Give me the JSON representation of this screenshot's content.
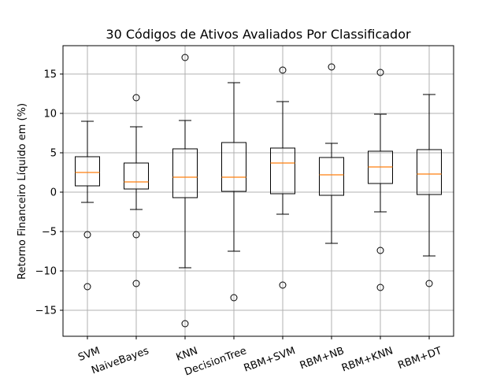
{
  "chart_data": {
    "type": "box",
    "title": "30 Códigos de Ativos Avaliados Por Classificador",
    "xlabel": "",
    "ylabel": "Retorno Financeiro Líquido em (%)",
    "ylim": [
      -18.3,
      18.6
    ],
    "yticks": [
      -15,
      -10,
      -5,
      0,
      5,
      10,
      15
    ],
    "grid": true,
    "median_color": "#ff7f0e",
    "categories": [
      "SVM",
      "NaiveBayes",
      "KNN",
      "DecisionTree",
      "RBM+SVM",
      "RBM+NB",
      "RBM+KNN",
      "RBM+DT"
    ],
    "boxes": [
      {
        "whisker_low": -1.3,
        "q1": 0.8,
        "median": 2.5,
        "q3": 4.5,
        "whisker_high": 9.0,
        "outliers": [
          -5.4,
          -12.0
        ]
      },
      {
        "whisker_low": -2.2,
        "q1": 0.4,
        "median": 1.3,
        "q3": 3.7,
        "whisker_high": 8.3,
        "outliers": [
          12.0,
          -5.4,
          -11.6
        ]
      },
      {
        "whisker_low": -9.6,
        "q1": -0.7,
        "median": 1.9,
        "q3": 5.5,
        "whisker_high": 9.1,
        "outliers": [
          17.1,
          -16.7
        ]
      },
      {
        "whisker_low": -7.5,
        "q1": 0.1,
        "median": 1.9,
        "q3": 6.3,
        "whisker_high": 13.9,
        "outliers": [
          -13.4
        ]
      },
      {
        "whisker_low": -2.8,
        "q1": -0.2,
        "median": 3.7,
        "q3": 5.6,
        "whisker_high": 11.5,
        "outliers": [
          15.5,
          -11.8
        ]
      },
      {
        "whisker_low": -6.5,
        "q1": -0.4,
        "median": 2.2,
        "q3": 4.4,
        "whisker_high": 6.2,
        "outliers": [
          15.9
        ]
      },
      {
        "whisker_low": -2.5,
        "q1": 1.1,
        "median": 3.2,
        "q3": 5.2,
        "whisker_high": 9.9,
        "outliers": [
          15.2,
          -7.4,
          -12.1
        ]
      },
      {
        "whisker_low": -8.1,
        "q1": -0.3,
        "median": 2.3,
        "q3": 5.4,
        "whisker_high": 12.4,
        "outliers": [
          -11.6
        ]
      }
    ]
  }
}
